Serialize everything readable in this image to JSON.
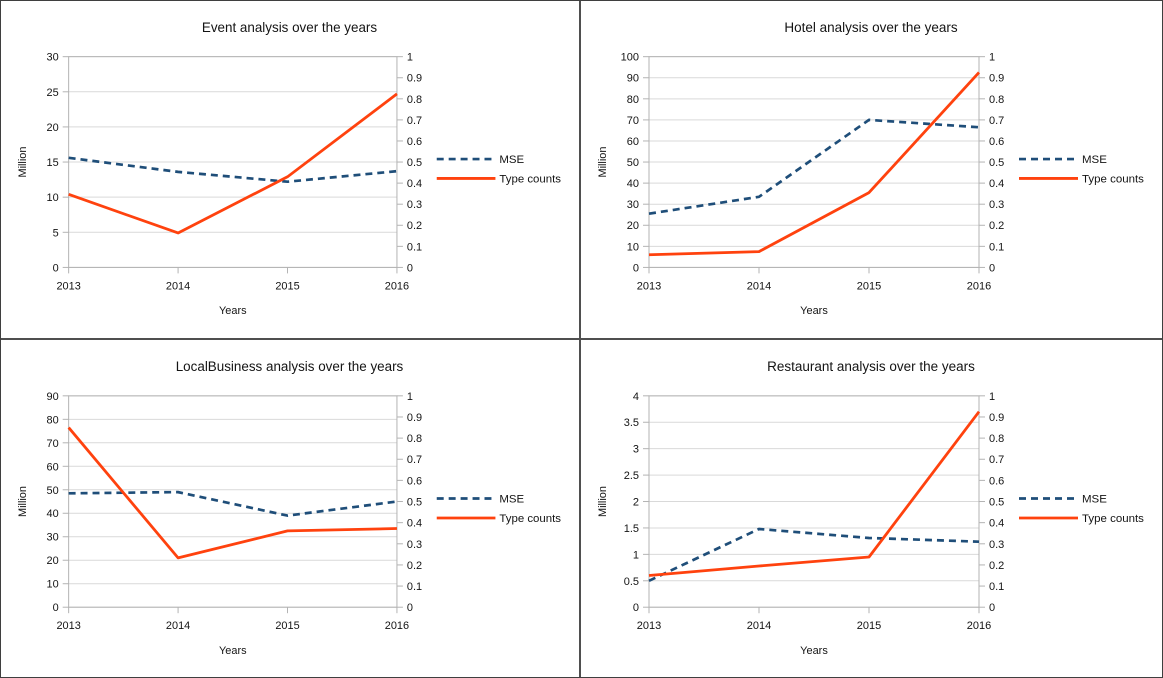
{
  "colors": {
    "mse": "#1f4e79",
    "type_counts": "#ff420e",
    "gridline": "#d9d9d9",
    "axis": "#b3b3b3",
    "text": "#141414",
    "divider": "#4f4f4f"
  },
  "chart_data": [
    {
      "type": "line",
      "title": "Event analysis over the years",
      "xlabel": "Years",
      "ylabel_left": "Million",
      "categories": [
        "2013",
        "2014",
        "2015",
        "2016"
      ],
      "left_axis": {
        "min": 0,
        "max": 30,
        "step": 5
      },
      "right_axis": {
        "min": 0,
        "max": 1,
        "step": 0.1
      },
      "grid": "horizontal",
      "legend_position": "right",
      "series": [
        {
          "name": "MSE",
          "style": "dashed",
          "color_key": "mse",
          "axis": "left",
          "values": [
            15.6,
            13.6,
            12.2,
            13.7
          ]
        },
        {
          "name": "Type counts",
          "style": "solid",
          "color_key": "type_counts",
          "axis": "left",
          "values": [
            10.4,
            4.9,
            12.9,
            24.7
          ]
        }
      ]
    },
    {
      "type": "line",
      "title": "Hotel analysis over the years",
      "xlabel": "Years",
      "ylabel_left": "Million",
      "categories": [
        "2013",
        "2014",
        "2015",
        "2016"
      ],
      "left_axis": {
        "min": 0,
        "max": 100,
        "step": 10
      },
      "right_axis": {
        "min": 0,
        "max": 1,
        "step": 0.1
      },
      "grid": "horizontal",
      "legend_position": "right",
      "series": [
        {
          "name": "MSE",
          "style": "dashed",
          "color_key": "mse",
          "axis": "left",
          "values": [
            25.5,
            33.5,
            70,
            66.5
          ]
        },
        {
          "name": "Type counts",
          "style": "solid",
          "color_key": "type_counts",
          "axis": "left",
          "values": [
            6,
            7.5,
            35.5,
            92.5
          ]
        }
      ]
    },
    {
      "type": "line",
      "title": "LocalBusiness analysis over the years",
      "xlabel": "Years",
      "ylabel_left": "Million",
      "categories": [
        "2013",
        "2014",
        "2015",
        "2016"
      ],
      "left_axis": {
        "min": 0,
        "max": 90,
        "step": 10
      },
      "right_axis": {
        "min": 0,
        "max": 1,
        "step": 0.1
      },
      "grid": "horizontal",
      "legend_position": "right",
      "series": [
        {
          "name": "MSE",
          "style": "dashed",
          "color_key": "mse",
          "axis": "left",
          "values": [
            48.5,
            49,
            39,
            45
          ]
        },
        {
          "name": "Type counts",
          "style": "solid",
          "color_key": "type_counts",
          "axis": "left",
          "values": [
            76.5,
            21,
            32.5,
            33.5
          ]
        }
      ]
    },
    {
      "type": "line",
      "title": "Restaurant analysis over the years",
      "xlabel": "Years",
      "ylabel_left": "Million",
      "categories": [
        "2013",
        "2014",
        "2015",
        "2016"
      ],
      "left_axis": {
        "min": 0,
        "max": 4,
        "step": 0.5
      },
      "right_axis": {
        "min": 0,
        "max": 1,
        "step": 0.1
      },
      "grid": "horizontal",
      "legend_position": "right",
      "series": [
        {
          "name": "MSE",
          "style": "dashed",
          "color_key": "mse",
          "axis": "left",
          "values": [
            0.5,
            1.48,
            1.31,
            1.24
          ]
        },
        {
          "name": "Type counts",
          "style": "solid",
          "color_key": "type_counts",
          "axis": "left",
          "values": [
            0.6,
            0.78,
            0.95,
            3.7
          ]
        }
      ]
    }
  ]
}
